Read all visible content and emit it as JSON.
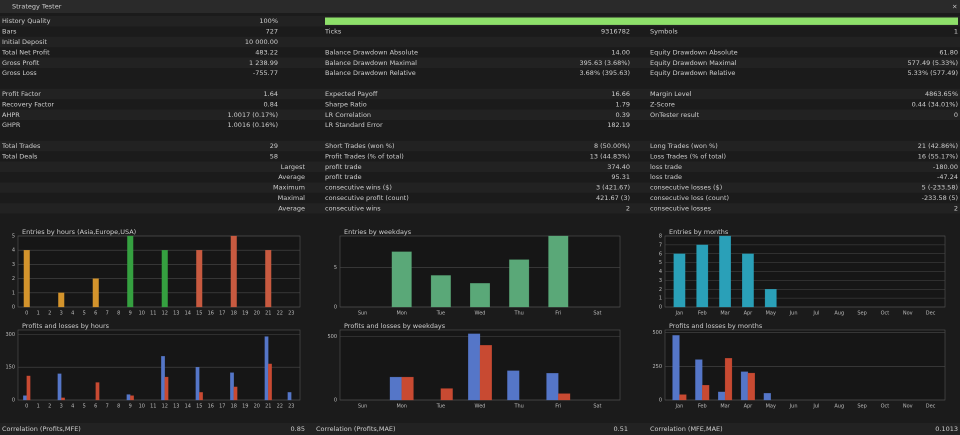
{
  "header": {
    "title": "Strategy Tester"
  },
  "sections": [
    [
      [
        {
          "label": "History Quality",
          "value": "100%"
        }
      ],
      [
        {
          "label": "Bars",
          "value": "727"
        },
        {
          "label": "Ticks",
          "value": "9316782"
        },
        {
          "label": "Symbols",
          "value": "1"
        }
      ],
      [
        {
          "label": "Initial Deposit",
          "value": "10 000.00"
        }
      ],
      [
        {
          "label": "Total Net Profit",
          "value": "483.22"
        },
        {
          "label": "Balance Drawdown Absolute",
          "value": "14.00"
        },
        {
          "label": "Equity Drawdown Absolute",
          "value": "61.80"
        }
      ],
      [
        {
          "label": "Gross Profit",
          "value": "1 238.99"
        },
        {
          "label": "Balance Drawdown Maximal",
          "value": "395.63 (3.68%)"
        },
        {
          "label": "Equity Drawdown Maximal",
          "value": "577.49 (5.33%)"
        }
      ],
      [
        {
          "label": "Gross Loss",
          "value": "-755.77"
        },
        {
          "label": "Balance Drawdown Relative",
          "value": "3.68% (395.63)"
        },
        {
          "label": "Equity Drawdown Relative",
          "value": "5.33% (577.49)"
        }
      ]
    ],
    [
      [
        {
          "label": "Profit Factor",
          "value": "1.64"
        },
        {
          "label": "Expected Payoff",
          "value": "16.66"
        },
        {
          "label": "Margin Level",
          "value": "4863.65%"
        }
      ],
      [
        {
          "label": "Recovery Factor",
          "value": "0.84"
        },
        {
          "label": "Sharpe Ratio",
          "value": "1.79"
        },
        {
          "label": "Z-Score",
          "value": "0.44 (34.01%)"
        }
      ],
      [
        {
          "label": "AHPR",
          "value": "1.0017 (0.17%)"
        },
        {
          "label": "LR Correlation",
          "value": "0.39"
        },
        {
          "label": "OnTester result",
          "value": "0"
        }
      ],
      [
        {
          "label": "GHPR",
          "value": "1.0016 (0.16%)"
        },
        {
          "label": "LR Standard Error",
          "value": "182.19"
        }
      ]
    ],
    [
      [
        {
          "label": "Total Trades",
          "value": "29"
        },
        {
          "label": "Short Trades (won %)",
          "value": "8 (50.00%)"
        },
        {
          "label": "Long Trades (won %)",
          "value": "21 (42.86%)"
        }
      ],
      [
        {
          "label": "Total Deals",
          "value": "58"
        },
        {
          "label": "Profit Trades (% of total)",
          "value": "13 (44.83%)"
        },
        {
          "label": "Loss Trades (% of total)",
          "value": "16 (55.17%)"
        }
      ],
      [
        {
          "label": "Largest"
        },
        {
          "label": "profit trade",
          "value": "374.40"
        },
        {
          "label": "loss trade",
          "value": "-180.00"
        }
      ],
      [
        {
          "label": "Average"
        },
        {
          "label": "profit trade",
          "value": "95.31"
        },
        {
          "label": "loss trade",
          "value": "-47.24"
        }
      ],
      [
        {
          "label": "Maximum"
        },
        {
          "label": "consecutive wins ($)",
          "value": "3 (421.67)"
        },
        {
          "label": "consecutive losses ($)",
          "value": "5 (-233.58)"
        }
      ],
      [
        {
          "label": "Maximal"
        },
        {
          "label": "consecutive profit (count)",
          "value": "421.67 (3)"
        },
        {
          "label": "consecutive loss (count)",
          "value": "-233.58 (5)"
        }
      ],
      [
        {
          "label": "Average"
        },
        {
          "label": "consecutive wins",
          "value": "2"
        },
        {
          "label": "consecutive losses",
          "value": "2"
        }
      ]
    ]
  ],
  "charts": [
    {
      "type": "bar",
      "title": "Entries by hours (Asia,Europe,USA)",
      "categories": [
        "0",
        "1",
        "2",
        "3",
        "4",
        "5",
        "6",
        "7",
        "8",
        "9",
        "10",
        "11",
        "12",
        "13",
        "14",
        "15",
        "16",
        "17",
        "18",
        "19",
        "20",
        "21",
        "22",
        "23"
      ],
      "values": [
        4,
        0,
        0,
        1,
        0,
        0,
        2,
        0,
        0,
        5,
        0,
        0,
        4,
        0,
        0,
        4,
        0,
        0,
        5,
        0,
        0,
        4,
        0,
        0
      ],
      "colors": [
        "#d4942c",
        "#d4942c",
        "#d4942c",
        "#d4942c",
        "#d4942c",
        "#d4942c",
        "#d4942c",
        "#d4942c",
        "#35a040",
        "#35a040",
        "#35a040",
        "#35a040",
        "#35a040",
        "#35a040",
        "#c85a40",
        "#c85a40",
        "#c85a40",
        "#c85a40",
        "#c85a40",
        "#c85a40",
        "#c85a40",
        "#c85a40",
        "#c85a40",
        "#c85a40"
      ],
      "ylim": [
        0,
        5
      ],
      "yticks": [
        0,
        1,
        2,
        3,
        4,
        5
      ]
    },
    {
      "type": "bar",
      "title": "Entries by weekdays",
      "categories": [
        "Sun",
        "Mon",
        "Tue",
        "Wed",
        "Thu",
        "Fri",
        "Sat"
      ],
      "values": [
        0,
        7,
        4,
        3,
        6,
        9,
        0
      ],
      "color": "#5aa878",
      "ylim": [
        0,
        9
      ],
      "yticks": [
        0,
        5
      ]
    },
    {
      "type": "bar",
      "title": "Entries by months",
      "categories": [
        "Jan",
        "Feb",
        "Mar",
        "Apr",
        "May",
        "Jun",
        "Jul",
        "Aug",
        "Sep",
        "Oct",
        "Nov",
        "Dec"
      ],
      "values": [
        6,
        7,
        8,
        6,
        2,
        0,
        0,
        0,
        0,
        0,
        0,
        0
      ],
      "color": "#2aa0b8",
      "ylim": [
        0,
        8
      ],
      "yticks": [
        0,
        1,
        2,
        3,
        4,
        5,
        6,
        7,
        8
      ]
    },
    {
      "type": "grouped-bar",
      "title": "Profits and losses by hours",
      "categories": [
        "0",
        "1",
        "2",
        "3",
        "4",
        "5",
        "6",
        "7",
        "8",
        "9",
        "10",
        "11",
        "12",
        "13",
        "14",
        "15",
        "16",
        "17",
        "18",
        "19",
        "20",
        "21",
        "22",
        "23"
      ],
      "series": [
        {
          "color": "#5576c8",
          "values": [
            20,
            0,
            0,
            120,
            0,
            0,
            0,
            0,
            0,
            25,
            0,
            0,
            200,
            0,
            0,
            150,
            0,
            0,
            125,
            0,
            0,
            290,
            0,
            35
          ]
        },
        {
          "color": "#c84a32",
          "values": [
            110,
            0,
            0,
            10,
            0,
            0,
            80,
            0,
            0,
            20,
            0,
            0,
            105,
            0,
            0,
            35,
            0,
            0,
            60,
            0,
            0,
            165,
            0,
            0
          ]
        }
      ],
      "ylim": [
        0,
        320
      ],
      "yticks": [
        0,
        150,
        300
      ]
    },
    {
      "type": "grouped-bar",
      "title": "Profits and losses by weekdays",
      "categories": [
        "Sun",
        "Mon",
        "Tue",
        "Wed",
        "Thu",
        "Fri",
        "Sat"
      ],
      "series": [
        {
          "color": "#5576c8",
          "values": [
            0,
            180,
            0,
            520,
            230,
            210,
            0
          ]
        },
        {
          "color": "#c84a32",
          "values": [
            0,
            180,
            90,
            430,
            0,
            50,
            0
          ]
        }
      ],
      "ylim": [
        0,
        550
      ],
      "yticks": [
        0,
        500
      ]
    },
    {
      "type": "grouped-bar",
      "title": "Profits and losses by months",
      "categories": [
        "Jan",
        "Feb",
        "Mar",
        "Apr",
        "May",
        "Jun",
        "Jul",
        "Aug",
        "Sep",
        "Oct",
        "Nov",
        "Dec"
      ],
      "series": [
        {
          "color": "#5576c8",
          "values": [
            480,
            300,
            60,
            210,
            50,
            0,
            0,
            0,
            0,
            0,
            0,
            0
          ]
        },
        {
          "color": "#c84a32",
          "values": [
            40,
            110,
            310,
            200,
            0,
            0,
            0,
            0,
            0,
            0,
            0,
            0
          ]
        }
      ],
      "ylim": [
        0,
        520
      ],
      "yticks": [
        0,
        250,
        500
      ]
    }
  ],
  "correlations": [
    {
      "label": "Correlation (Profits,MFE)",
      "value": "0.85"
    },
    {
      "label": "Correlation (Profits,MAE)",
      "value": "0.51"
    },
    {
      "label": "Correlation (MFE,MAE)",
      "value": "0.1013"
    }
  ]
}
